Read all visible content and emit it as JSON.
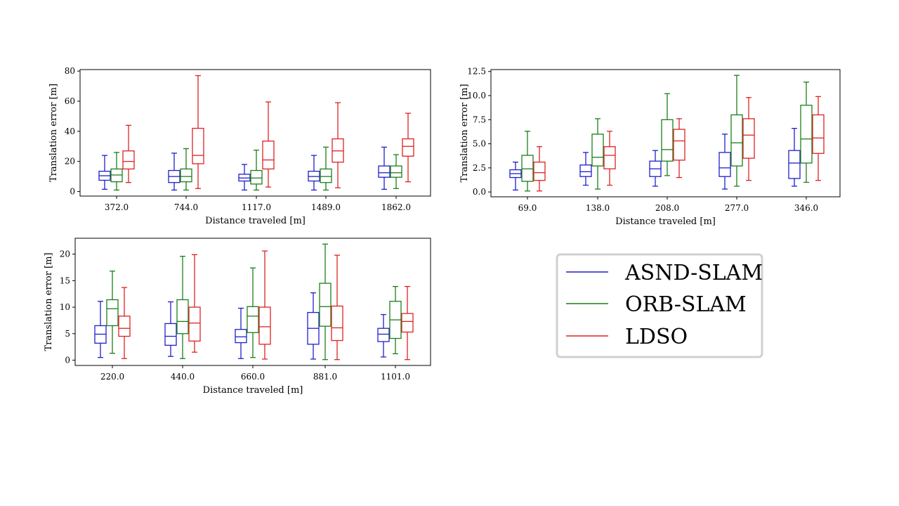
{
  "legend": {
    "position": "lower-right",
    "entries": [
      {
        "label": "ASND-SLAM",
        "color": "#1f1fcc"
      },
      {
        "label": "ORB-SLAM",
        "color": "#1a7f1a"
      },
      {
        "label": "LDSO",
        "color": "#dd2222"
      }
    ]
  },
  "chart_data": [
    {
      "type": "boxplot",
      "xlabel": "Distance traveled [m]",
      "ylabel": "Translation error [m]",
      "ylim": [
        -3,
        81
      ],
      "yticks": [
        0,
        20,
        40,
        60,
        80
      ],
      "ytick_labels": [
        "0",
        "20",
        "40",
        "60",
        "80"
      ],
      "categories": [
        "372.0",
        "744.0",
        "1117.0",
        "1489.0",
        "1862.0"
      ],
      "series": [
        {
          "name": "ASND-SLAM",
          "boxes": [
            {
              "min": 1.5,
              "q1": 7.5,
              "median": 10.5,
              "q3": 13.5,
              "max": 24
            },
            {
              "min": 1,
              "q1": 6,
              "median": 10,
              "q3": 14,
              "max": 25.5
            },
            {
              "min": 1,
              "q1": 7,
              "median": 9,
              "q3": 11.5,
              "max": 18
            },
            {
              "min": 1,
              "q1": 7,
              "median": 10,
              "q3": 13.5,
              "max": 24
            },
            {
              "min": 1.5,
              "q1": 9.5,
              "median": 12.5,
              "q3": 17,
              "max": 29.5
            }
          ]
        },
        {
          "name": "ORB-SLAM",
          "boxes": [
            {
              "min": 1,
              "q1": 6.5,
              "median": 11,
              "q3": 15,
              "max": 26
            },
            {
              "min": 1,
              "q1": 6.5,
              "median": 10,
              "q3": 15,
              "max": 28.5
            },
            {
              "min": 1,
              "q1": 5,
              "median": 9,
              "q3": 14,
              "max": 27.5
            },
            {
              "min": 1,
              "q1": 6,
              "median": 10,
              "q3": 15,
              "max": 29.5
            },
            {
              "min": 2,
              "q1": 9.5,
              "median": 12.5,
              "q3": 17,
              "max": 24.5
            }
          ]
        },
        {
          "name": "LDSO",
          "boxes": [
            {
              "min": 6,
              "q1": 15,
              "median": 20,
              "q3": 27,
              "max": 44
            },
            {
              "min": 2,
              "q1": 18.5,
              "median": 24,
              "q3": 42,
              "max": 77
            },
            {
              "min": 3,
              "q1": 15,
              "median": 21,
              "q3": 33.5,
              "max": 59.5
            },
            {
              "min": 2.5,
              "q1": 19.5,
              "median": 27,
              "q3": 35,
              "max": 59
            },
            {
              "min": 6.5,
              "q1": 23.5,
              "median": 30,
              "q3": 35,
              "max": 52
            }
          ]
        }
      ]
    },
    {
      "type": "boxplot",
      "xlabel": "Distance traveled [m]",
      "ylabel": "Translation error [m]",
      "ylim": [
        -0.5,
        12.7
      ],
      "yticks": [
        0,
        2.5,
        5,
        7.5,
        10,
        12.5
      ],
      "ytick_labels": [
        "0.0",
        "2.5",
        "5.0",
        "7.5",
        "10.0",
        "12.5"
      ],
      "categories": [
        "69.0",
        "138.0",
        "208.0",
        "277.0",
        "346.0"
      ],
      "series": [
        {
          "name": "ASND-SLAM",
          "boxes": [
            {
              "min": 0.2,
              "q1": 1.5,
              "median": 1.9,
              "q3": 2.3,
              "max": 3.1
            },
            {
              "min": 0.7,
              "q1": 1.6,
              "median": 2.1,
              "q3": 2.8,
              "max": 4.1
            },
            {
              "min": 0.6,
              "q1": 1.6,
              "median": 2.4,
              "q3": 3.2,
              "max": 4.3
            },
            {
              "min": 0.3,
              "q1": 1.6,
              "median": 2.5,
              "q3": 4.1,
              "max": 6.0
            },
            {
              "min": 0.6,
              "q1": 1.4,
              "median": 3.0,
              "q3": 4.3,
              "max": 6.6
            }
          ]
        },
        {
          "name": "ORB-SLAM",
          "boxes": [
            {
              "min": 0.1,
              "q1": 1.1,
              "median": 2.4,
              "q3": 3.8,
              "max": 6.3
            },
            {
              "min": 0.3,
              "q1": 2.7,
              "median": 3.6,
              "q3": 6.0,
              "max": 7.6
            },
            {
              "min": 1.7,
              "q1": 3.2,
              "median": 4.4,
              "q3": 7.5,
              "max": 10.2
            },
            {
              "min": 0.6,
              "q1": 2.7,
              "median": 5.1,
              "q3": 8.0,
              "max": 12.1
            },
            {
              "min": 1.0,
              "q1": 3.0,
              "median": 5.5,
              "q3": 9.0,
              "max": 11.4
            }
          ]
        },
        {
          "name": "LDSO",
          "boxes": [
            {
              "min": 0.1,
              "q1": 1.2,
              "median": 2.0,
              "q3": 3.1,
              "max": 4.7
            },
            {
              "min": 0.7,
              "q1": 2.4,
              "median": 3.8,
              "q3": 4.7,
              "max": 6.3
            },
            {
              "min": 1.5,
              "q1": 3.3,
              "median": 5.3,
              "q3": 6.5,
              "max": 7.6
            },
            {
              "min": 1.2,
              "q1": 3.5,
              "median": 5.9,
              "q3": 7.6,
              "max": 9.8
            },
            {
              "min": 1.2,
              "q1": 4.0,
              "median": 5.6,
              "q3": 8.0,
              "max": 9.9
            }
          ]
        }
      ]
    },
    {
      "type": "boxplot",
      "xlabel": "Distance traveled [m]",
      "ylabel": "Translation error [m]",
      "ylim": [
        -1,
        23
      ],
      "yticks": [
        0,
        5,
        10,
        15,
        20
      ],
      "ytick_labels": [
        "0",
        "5",
        "10",
        "15",
        "20"
      ],
      "categories": [
        "220.0",
        "440.0",
        "660.0",
        "881.0",
        "1101.0"
      ],
      "series": [
        {
          "name": "ASND-SLAM",
          "boxes": [
            {
              "min": 0.5,
              "q1": 3.2,
              "median": 4.9,
              "q3": 6.5,
              "max": 11.1
            },
            {
              "min": 0.7,
              "q1": 2.8,
              "median": 4.5,
              "q3": 6.9,
              "max": 11.0
            },
            {
              "min": 0.3,
              "q1": 3.3,
              "median": 4.4,
              "q3": 5.8,
              "max": 9.8
            },
            {
              "min": 0.2,
              "q1": 3.0,
              "median": 6.0,
              "q3": 9.0,
              "max": 12.7
            },
            {
              "min": 0.6,
              "q1": 3.5,
              "median": 4.9,
              "q3": 6.0,
              "max": 8.6
            }
          ]
        },
        {
          "name": "ORB-SLAM",
          "boxes": [
            {
              "min": 1.3,
              "q1": 6.5,
              "median": 9.7,
              "q3": 11.4,
              "max": 16.8
            },
            {
              "min": 0.3,
              "q1": 5.0,
              "median": 7.3,
              "q3": 11.4,
              "max": 19.6
            },
            {
              "min": 0.5,
              "q1": 5.2,
              "median": 8.3,
              "q3": 10.1,
              "max": 17.4
            },
            {
              "min": 0.1,
              "q1": 6.4,
              "median": 10.1,
              "q3": 14.5,
              "max": 21.9
            },
            {
              "min": 1.2,
              "q1": 4.1,
              "median": 7.6,
              "q3": 11.1,
              "max": 13.9
            }
          ]
        },
        {
          "name": "LDSO",
          "boxes": [
            {
              "min": 0.3,
              "q1": 4.5,
              "median": 6.0,
              "q3": 8.3,
              "max": 13.7
            },
            {
              "min": 1.5,
              "q1": 3.6,
              "median": 7.0,
              "q3": 10.0,
              "max": 19.9
            },
            {
              "min": 0.2,
              "q1": 3.0,
              "median": 6.3,
              "q3": 10.0,
              "max": 20.6
            },
            {
              "min": 0.1,
              "q1": 3.7,
              "median": 6.1,
              "q3": 10.2,
              "max": 19.8
            },
            {
              "min": 0.1,
              "q1": 5.3,
              "median": 7.3,
              "q3": 8.8,
              "max": 13.9
            }
          ]
        }
      ]
    }
  ]
}
